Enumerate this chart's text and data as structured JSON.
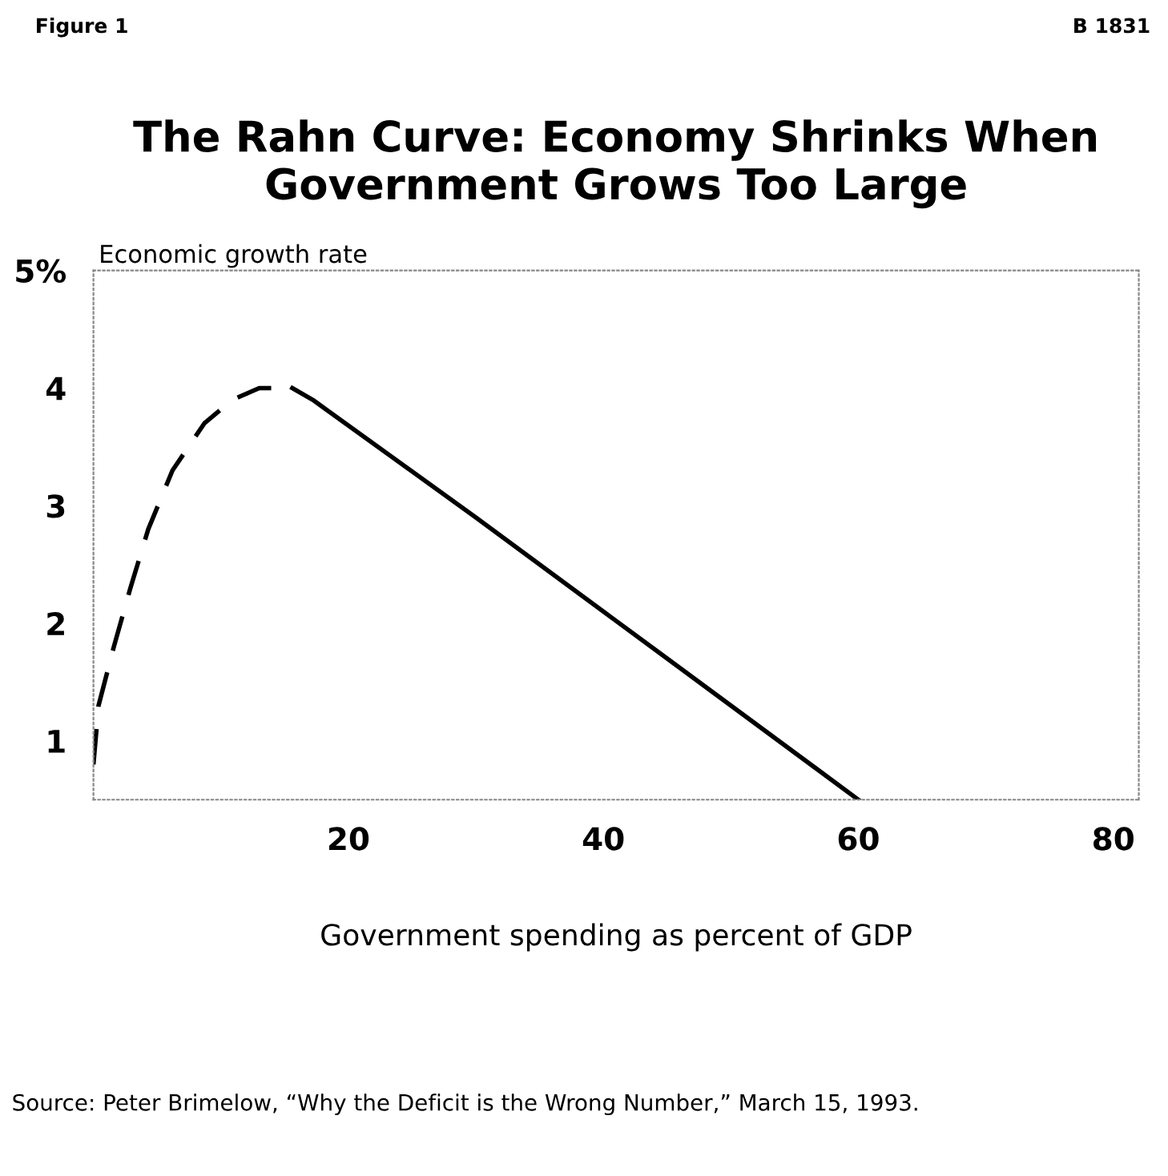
{
  "chart_data": {
    "type": "line",
    "title": "The Rahn Curve: Economy Shrinks When\nGovernment Grows Too Large",
    "xlabel": "Government spending as percent of GDP",
    "ylabel": "Economic growth rate",
    "series": [
      {
        "color": "#000000",
        "line_style": "dashed",
        "x": [
          0,
          0.4,
          1.6,
          2.9,
          4.3,
          6.2,
          8.7,
          10.9,
          13,
          15.6
        ],
        "values": [
          0.8,
          1.3,
          1.8,
          2.3,
          2.8,
          3.3,
          3.7,
          3.9,
          4.0,
          4.0
        ]
      },
      {
        "color": "#000000",
        "line_style": "solid",
        "x": [
          15.6,
          17.2,
          30,
          45,
          60
        ],
        "values": [
          4.0,
          3.9,
          2.9,
          1.7,
          0.5
        ]
      }
    ],
    "xlim": [
      0,
      82
    ],
    "ylim": [
      0.5,
      5
    ],
    "xticks": [
      20,
      40,
      60,
      80
    ],
    "yticks": [
      1,
      2,
      3,
      4,
      {
        "value": 5,
        "label": "5%"
      }
    ],
    "grid": false,
    "legend": false,
    "marker": "none",
    "annotations": [
      "Figure 1",
      "B 1831",
      "Source: Peter Brimelow, “Why the Deficit is the Wrong Number,” March 15, 1993."
    ]
  }
}
